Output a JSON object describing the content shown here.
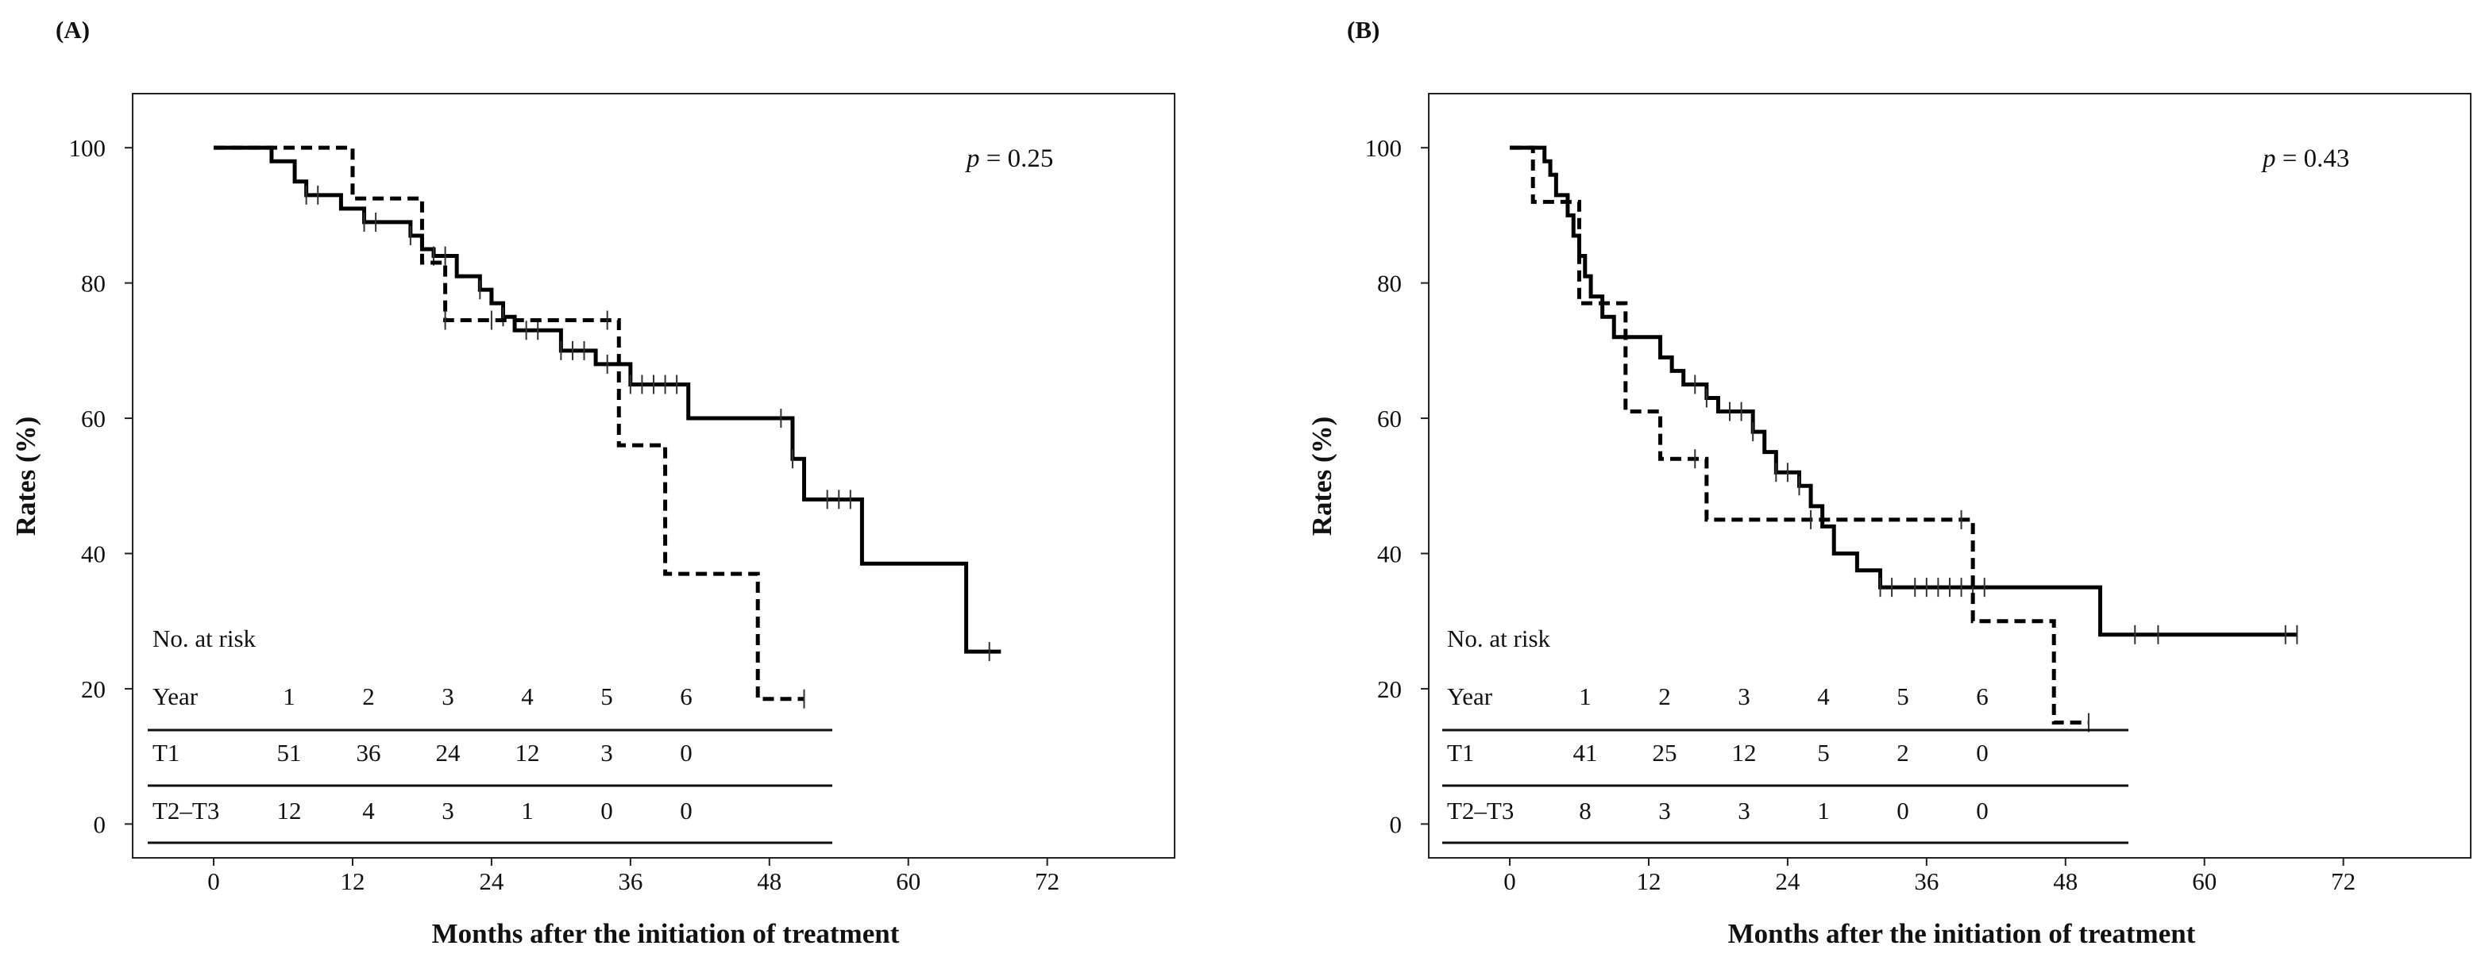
{
  "chart_data": [
    {
      "type": "line",
      "panel_label": "(A)",
      "ylabel": "Rates (%)",
      "xlabel": "Months after the initiation of treatment",
      "xlim": [
        -7,
        83
      ],
      "ylim": [
        -5,
        108
      ],
      "x_ticks": [
        0,
        12,
        24,
        36,
        48,
        60,
        72
      ],
      "y_ticks": [
        0,
        20,
        40,
        60,
        80,
        100
      ],
      "p_prefix": "p",
      "p_value": " = 0.25",
      "series": [
        {
          "name": "T1",
          "style": "solid",
          "steps": [
            [
              0,
              100
            ],
            [
              5,
              98
            ],
            [
              7,
              95
            ],
            [
              8,
              93
            ],
            [
              11,
              91
            ],
            [
              13,
              89
            ],
            [
              17,
              87
            ],
            [
              18,
              85
            ],
            [
              19,
              84
            ],
            [
              21,
              81
            ],
            [
              23,
              79
            ],
            [
              24,
              77
            ],
            [
              25,
              75
            ],
            [
              26,
              73
            ],
            [
              30,
              70
            ],
            [
              33,
              68
            ],
            [
              36,
              65
            ],
            [
              41,
              60
            ],
            [
              50,
              54
            ],
            [
              51,
              48
            ],
            [
              56,
              38.5
            ],
            [
              65,
              25.5
            ],
            [
              68,
              25.5
            ]
          ],
          "censor_x": [
            8,
            9,
            13,
            14,
            17,
            19,
            20,
            23,
            25,
            27,
            28,
            30,
            31,
            32,
            34,
            36,
            37,
            38,
            39,
            40,
            49,
            50,
            53,
            54,
            55,
            67
          ]
        },
        {
          "name": "T2–T3",
          "style": "dashed",
          "steps": [
            [
              0,
              100
            ],
            [
              5,
              100
            ],
            [
              12,
              92.5
            ],
            [
              18,
              83
            ],
            [
              20,
              74.5
            ],
            [
              35,
              56
            ],
            [
              39,
              37
            ],
            [
              47,
              18.5
            ],
            [
              51,
              18.5
            ]
          ],
          "censor_x": [
            20,
            24,
            34,
            51
          ]
        }
      ],
      "risk_table": {
        "title": "No. at risk",
        "header_label": "Year",
        "years": [
          "1",
          "2",
          "3",
          "4",
          "5",
          "6"
        ],
        "rows": [
          {
            "label": "T1",
            "values": [
              "51",
              "36",
              "24",
              "12",
              "3",
              "0"
            ]
          },
          {
            "label": "T2–T3",
            "values": [
              "12",
              "4",
              "3",
              "1",
              "0",
              "0"
            ]
          }
        ]
      }
    },
    {
      "type": "line",
      "panel_label": "(B)",
      "ylabel": "Rates (%)",
      "xlabel": "Months after the initiation of treatment",
      "xlim": [
        -7,
        83
      ],
      "ylim": [
        -5,
        108
      ],
      "x_ticks": [
        0,
        12,
        24,
        36,
        48,
        60,
        72
      ],
      "y_ticks": [
        0,
        20,
        40,
        60,
        80,
        100
      ],
      "p_prefix": "p",
      "p_value": " = 0.43",
      "series": [
        {
          "name": "T1",
          "style": "solid",
          "steps": [
            [
              0,
              100
            ],
            [
              3,
              98
            ],
            [
              3.5,
              96
            ],
            [
              4,
              93
            ],
            [
              5,
              90
            ],
            [
              5.5,
              87
            ],
            [
              6,
              84
            ],
            [
              6.5,
              81
            ],
            [
              7,
              78
            ],
            [
              8,
              75
            ],
            [
              9,
              72
            ],
            [
              13,
              69
            ],
            [
              14,
              67
            ],
            [
              15,
              65
            ],
            [
              17,
              63
            ],
            [
              18,
              61
            ],
            [
              21,
              58
            ],
            [
              22,
              55
            ],
            [
              23,
              52
            ],
            [
              25,
              50
            ],
            [
              26,
              47
            ],
            [
              27,
              44
            ],
            [
              28,
              40
            ],
            [
              30,
              37.5
            ],
            [
              32,
              35
            ],
            [
              51,
              28
            ],
            [
              68,
              28
            ]
          ],
          "censor_x": [
            16,
            17,
            19,
            20,
            21,
            23,
            24,
            25,
            32,
            33,
            35,
            36,
            37,
            38,
            39,
            40,
            41,
            54,
            56,
            67,
            68
          ]
        },
        {
          "name": "T2–T3",
          "style": "dashed",
          "steps": [
            [
              0,
              100
            ],
            [
              2,
              92
            ],
            [
              4,
              92
            ],
            [
              6,
              77
            ],
            [
              10,
              61
            ],
            [
              13,
              54
            ],
            [
              17,
              45
            ],
            [
              39,
              45
            ],
            [
              40,
              30
            ],
            [
              47,
              15
            ],
            [
              50,
              15
            ]
          ],
          "censor_x": [
            16,
            26,
            39,
            50
          ]
        }
      ],
      "risk_table": {
        "title": "No. at risk",
        "header_label": "Year",
        "years": [
          "1",
          "2",
          "3",
          "4",
          "5",
          "6"
        ],
        "rows": [
          {
            "label": "T1",
            "values": [
              "41",
              "25",
              "12",
              "5",
              "2",
              "0"
            ]
          },
          {
            "label": "T2–T3",
            "values": [
              "8",
              "3",
              "3",
              "1",
              "0",
              "0"
            ]
          }
        ]
      }
    }
  ]
}
